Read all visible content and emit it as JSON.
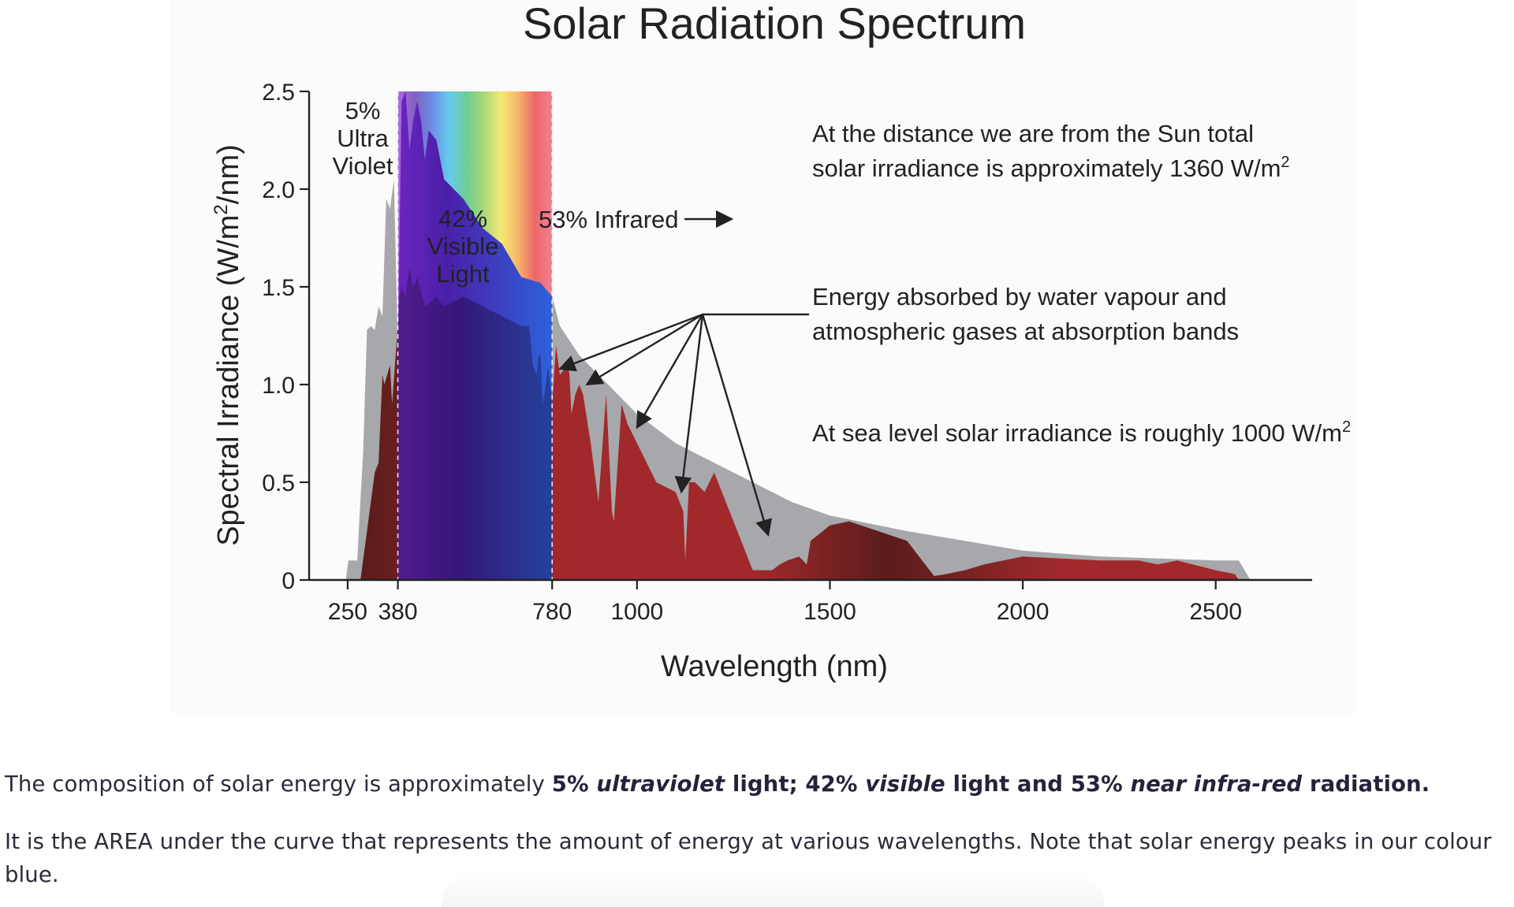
{
  "chart_data": {
    "type": "area",
    "title": "Solar Radiation Spectrum",
    "xlabel": "Wavelength (nm)",
    "ylabel_main": "Spectral Irradiance (W/m",
    "ylabel_sup": "2",
    "ylabel_tail": "/nm)",
    "xlim": [
      150,
      2750
    ],
    "ylim": [
      0,
      2.5
    ],
    "xticks": [
      250,
      380,
      780,
      1000,
      1500,
      2000,
      2500
    ],
    "xtick_labels": [
      "250",
      "380",
      "780",
      "1000",
      "1500",
      "2000",
      "2500"
    ],
    "yticks": [
      0,
      0.5,
      1.0,
      1.5,
      2.0,
      2.5
    ],
    "ytick_labels": [
      "0",
      "0.5",
      "1.0",
      "1.5",
      "2.0",
      "2.5"
    ],
    "grid": false,
    "visible_band": [
      380,
      780
    ],
    "colors": {
      "top_of_atmosphere": "#a6a8ab",
      "sea_level": "#a1292b",
      "sea_level_dark": "#5a1c1c",
      "visible_gradient": [
        "#8e2bd6",
        "#4a1fa8",
        "#2f5ed8",
        "#25b8e6",
        "#30b86a",
        "#86c840",
        "#f2e23b",
        "#f59a2a",
        "#e8262a",
        "#ef4d68"
      ]
    },
    "series": [
      {
        "x": [
          245,
          252,
          275,
          280,
          290,
          300,
          310,
          320,
          330,
          340,
          350,
          360,
          370,
          380,
          390,
          400,
          410,
          420,
          430,
          440,
          450,
          460,
          480,
          500,
          550,
          600,
          650,
          700,
          750,
          780,
          800,
          850,
          900,
          1000,
          1100,
          1200,
          1300,
          1400,
          1500,
          1700,
          2000,
          2200,
          2500,
          2560,
          2590
        ],
        "y": [
          0,
          0.1,
          0.1,
          0.3,
          0.65,
          1.28,
          1.3,
          1.28,
          1.4,
          1.35,
          1.95,
          1.9,
          2.05,
          1.2,
          2.45,
          2.5,
          2.2,
          2.35,
          2.45,
          2.35,
          2.15,
          2.3,
          2.25,
          2.05,
          1.95,
          1.8,
          1.72,
          1.55,
          1.52,
          1.45,
          1.3,
          1.15,
          1.05,
          0.85,
          0.7,
          0.6,
          0.5,
          0.4,
          0.33,
          0.25,
          0.15,
          0.12,
          0.1,
          0.1,
          0
        ]
      },
      {
        "x": [
          283,
          300,
          320,
          330,
          340,
          345,
          360,
          365,
          380,
          385,
          390,
          400,
          410,
          420,
          430,
          450,
          480,
          500,
          550,
          600,
          650,
          700,
          720,
          730,
          740,
          745,
          750,
          755,
          760,
          770,
          780,
          790,
          800,
          820,
          825,
          830,
          840,
          850,
          860,
          880,
          900,
          920,
          935,
          940,
          950,
          960,
          975,
          1000,
          1050,
          1100,
          1120,
          1125,
          1135,
          1150,
          1175,
          1200,
          1250,
          1300,
          1350,
          1370,
          1390,
          1420,
          1440,
          1450,
          1500,
          1550,
          1700,
          1770,
          1800,
          1850,
          1900,
          1950,
          2000,
          2200,
          2300,
          2350,
          2400,
          2500,
          2550,
          2560
        ],
        "y": [
          0,
          0.25,
          0.55,
          0.6,
          1.05,
          1.0,
          1.1,
          0.9,
          1.3,
          1.45,
          1.5,
          1.45,
          1.6,
          1.5,
          1.55,
          1.4,
          1.45,
          1.4,
          1.45,
          1.4,
          1.35,
          1.3,
          1.3,
          1.1,
          1.05,
          1.15,
          1.15,
          0.9,
          0.95,
          1.1,
          0.9,
          1.2,
          1.05,
          1.1,
          1.05,
          0.85,
          0.95,
          1.0,
          0.95,
          0.7,
          0.4,
          0.95,
          0.35,
          0.3,
          0.6,
          0.9,
          0.8,
          0.7,
          0.5,
          0.45,
          0.35,
          0.1,
          0.5,
          0.5,
          0.45,
          0.55,
          0.3,
          0.05,
          0.05,
          0.08,
          0.1,
          0.12,
          0.08,
          0.2,
          0.28,
          0.3,
          0.2,
          0.02,
          0.03,
          0.05,
          0.08,
          0.1,
          0.12,
          0.1,
          0.1,
          0.08,
          0.1,
          0.05,
          0.03,
          0
        ]
      }
    ],
    "annotations": {
      "uv": [
        "5%",
        "Ultra",
        "Violet"
      ],
      "visible": [
        "42%",
        "Visible",
        "Light"
      ],
      "infrared": "53% Infrared",
      "tsi_line1": "At the distance we are from the Sun total",
      "tsi_line2": "solar irradiance is approximately 1360 W/m",
      "tsi_sup": "2",
      "absorb_line1": "Energy absorbed by water vapour and",
      "absorb_line2": "atmospheric gases at absorption bands",
      "sea_level_text": "At sea level solar irradiance is roughly 1000 W/m",
      "sea_level_sup": "2",
      "absorption_targets": [
        [
          800,
          1.08
        ],
        [
          870,
          1.0
        ],
        [
          1000,
          0.78
        ],
        [
          1115,
          0.45
        ],
        [
          1340,
          0.23
        ]
      ]
    }
  },
  "caption": {
    "p1_a": "The composition of solar energy is approximately ",
    "p1_b1": "5% ",
    "p1_b2": "ultraviolet",
    "p1_b3": " light; 42% ",
    "p1_b4": "visible",
    "p1_b5": " light and 53% ",
    "p1_b6": "near infra-red",
    "p1_b7": " radiation.",
    "p2": "It is the AREA under the curve that represents the amount of energy at various wavelengths. Note that solar energy peaks in our colour blue."
  }
}
